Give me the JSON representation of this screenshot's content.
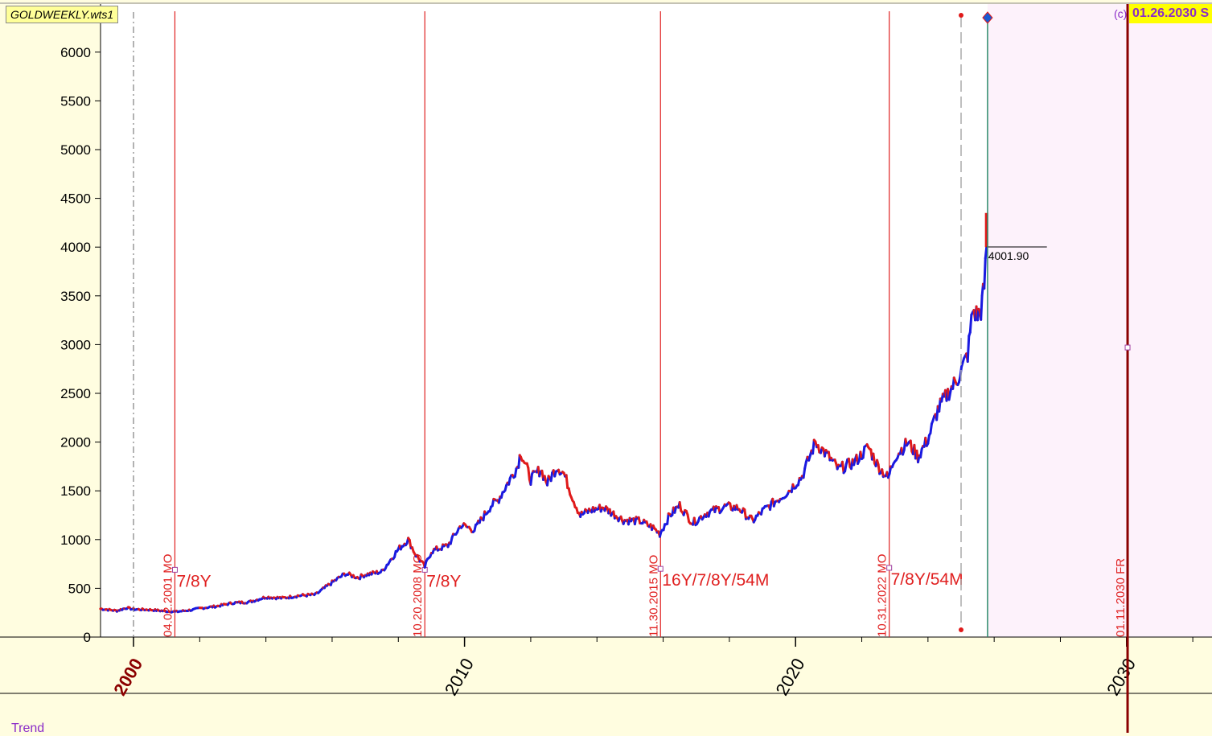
{
  "window": {
    "file_tag": "GOLDWEEKLY.wts1",
    "copyright_mark": "(c)",
    "date_badge": "01.26.2030 S",
    "trend_label": "Trend"
  },
  "colors": {
    "background": "#fffde0",
    "plot_background": "#ffffff",
    "future_zone": "#fdf2fb",
    "cycle_line": "#e02020",
    "up_bar": "#1a1ae0",
    "down_bar": "#e01a1a",
    "current_line": "#2a8a6a"
  },
  "chart_data": {
    "type": "line",
    "title": "",
    "xlabel": "",
    "ylabel": "",
    "xlim": [
      1999.0,
      2032.5
    ],
    "ylim": [
      0,
      6300
    ],
    "y_ticks": [
      0,
      500,
      1000,
      1500,
      2000,
      2500,
      3000,
      3500,
      4000,
      4500,
      5000,
      5500,
      6000
    ],
    "x_ticks": [
      {
        "year": 2000,
        "label": "2000"
      },
      {
        "year": 2010,
        "label": "2010"
      },
      {
        "year": 2020,
        "label": "2020"
      },
      {
        "year": 2030,
        "label": "2030"
      }
    ],
    "series": [
      {
        "values": [
          [
            1999.0,
            290
          ],
          [
            1999.5,
            270
          ],
          [
            1999.8,
            300
          ],
          [
            2000.0,
            285
          ],
          [
            2000.5,
            280
          ],
          [
            2001.0,
            265
          ],
          [
            2001.3,
            260
          ],
          [
            2001.8,
            280
          ],
          [
            2002.0,
            295
          ],
          [
            2002.5,
            315
          ],
          [
            2003.0,
            350
          ],
          [
            2003.5,
            360
          ],
          [
            2004.0,
            410
          ],
          [
            2004.5,
            400
          ],
          [
            2005.0,
            425
          ],
          [
            2005.5,
            435
          ],
          [
            2006.0,
            560
          ],
          [
            2006.4,
            650
          ],
          [
            2006.8,
            610
          ],
          [
            2007.0,
            640
          ],
          [
            2007.5,
            670
          ],
          [
            2008.0,
            900
          ],
          [
            2008.3,
            1000
          ],
          [
            2008.5,
            860
          ],
          [
            2008.8,
            720
          ],
          [
            2009.0,
            880
          ],
          [
            2009.5,
            940
          ],
          [
            2009.9,
            1150
          ],
          [
            2010.3,
            1100
          ],
          [
            2010.8,
            1350
          ],
          [
            2011.0,
            1400
          ],
          [
            2011.6,
            1750
          ],
          [
            2011.7,
            1900
          ],
          [
            2012.0,
            1620
          ],
          [
            2012.3,
            1720
          ],
          [
            2012.5,
            1580
          ],
          [
            2012.8,
            1750
          ],
          [
            2013.0,
            1680
          ],
          [
            2013.3,
            1400
          ],
          [
            2013.5,
            1250
          ],
          [
            2013.8,
            1300
          ],
          [
            2014.2,
            1330
          ],
          [
            2014.8,
            1200
          ],
          [
            2015.3,
            1190
          ],
          [
            2015.7,
            1120
          ],
          [
            2015.9,
            1060
          ],
          [
            2016.2,
            1250
          ],
          [
            2016.5,
            1350
          ],
          [
            2016.9,
            1170
          ],
          [
            2017.3,
            1270
          ],
          [
            2017.9,
            1340
          ],
          [
            2018.3,
            1320
          ],
          [
            2018.7,
            1190
          ],
          [
            2019.0,
            1290
          ],
          [
            2019.5,
            1420
          ],
          [
            2019.8,
            1500
          ],
          [
            2020.2,
            1650
          ],
          [
            2020.6,
            2000
          ],
          [
            2021.0,
            1850
          ],
          [
            2021.3,
            1720
          ],
          [
            2021.8,
            1800
          ],
          [
            2022.2,
            1950
          ],
          [
            2022.5,
            1750
          ],
          [
            2022.8,
            1630
          ],
          [
            2023.0,
            1850
          ],
          [
            2023.4,
            2000
          ],
          [
            2023.7,
            1850
          ],
          [
            2024.0,
            2030
          ],
          [
            2024.3,
            2330
          ],
          [
            2024.6,
            2500
          ],
          [
            2024.9,
            2650
          ],
          [
            2025.2,
            2900
          ],
          [
            2025.35,
            3350
          ],
          [
            2025.5,
            3300
          ],
          [
            2025.6,
            3350
          ],
          [
            2025.7,
            3600
          ],
          [
            2025.77,
            4000
          ]
        ]
      }
    ],
    "last_price": {
      "value": 4001.9,
      "label": "4001.90"
    },
    "last_bar_wick": [
      4000,
      4350
    ],
    "current_date_line": 2025.8,
    "dashed_line": 2025.0,
    "dashdot_line": 2000.0,
    "cycle_markers": [
      {
        "year": 2001.25,
        "date_label": "04.02.2001 MO",
        "cycle_label": "7/8Y",
        "marker_value": 690
      },
      {
        "year": 2008.8,
        "date_label": "10.20.2008 MO",
        "cycle_label": "7/8Y",
        "marker_value": 690
      },
      {
        "year": 2015.92,
        "date_label": "11.30.2015 MO",
        "cycle_label": "16Y/7/8Y/54M",
        "marker_value": 700
      },
      {
        "year": 2022.83,
        "date_label": "10.31.2022 MO",
        "cycle_label": "7/8Y/54M",
        "marker_value": 710
      }
    ],
    "future_marker": {
      "year": 2030.03,
      "date_label": "01.11.2030 FR",
      "marker_value": 2970
    },
    "grid": false,
    "legend": "none"
  }
}
